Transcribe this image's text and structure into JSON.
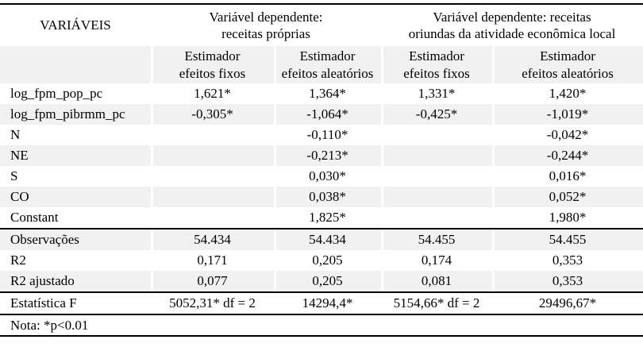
{
  "colors": {
    "background": "#ffffff",
    "row_shade": "#f1f1f1",
    "rule": "#000000",
    "text": "#000000"
  },
  "table": {
    "variables_header": "VARIÁVEIS",
    "group_headers": [
      {
        "line1": "Variável dependente:",
        "line2": "receitas próprias"
      },
      {
        "line1": "Variável dependente: receitas",
        "line2": "oriundas da atividade econômica local"
      }
    ],
    "estimator_headers": [
      {
        "line1": "Estimador",
        "line2": "efeitos fixos"
      },
      {
        "line1": "Estimador",
        "line2": "efeitos aleatórios"
      },
      {
        "line1": "Estimador",
        "line2": "efeitos fixos"
      },
      {
        "line1": "Estimador",
        "line2": "efeitos aleatórios"
      }
    ],
    "rows": [
      {
        "label": "log_fpm_pop_pc",
        "values": [
          "1,621*",
          "1,364*",
          "1,331*",
          "1,420*"
        ]
      },
      {
        "label": "log_fpm_pibrmm_pc",
        "values": [
          "-0,305*",
          "-1,064*",
          "-0,425*",
          "-1,019*"
        ]
      },
      {
        "label": "N",
        "values": [
          "",
          "-0,110*",
          "",
          "-0,042*"
        ]
      },
      {
        "label": "NE",
        "values": [
          "",
          "-0,213*",
          "",
          "-0,244*"
        ]
      },
      {
        "label": "S",
        "values": [
          "",
          "0,030*",
          "",
          "0,016*"
        ]
      },
      {
        "label": "CO",
        "values": [
          "",
          "0,038*",
          "",
          "0,052*"
        ]
      },
      {
        "label": "Constant",
        "values": [
          "",
          "1,825*",
          "",
          "1,980*"
        ]
      },
      {
        "label": "Observações",
        "values": [
          "54.434",
          "54.434",
          "54.455",
          "54.455"
        ]
      },
      {
        "label": "R2",
        "values": [
          "0,171",
          "0,205",
          "0,174",
          "0,353"
        ]
      },
      {
        "label": "R2 ajustado",
        "values": [
          "0,077",
          "0,205",
          "0,081",
          "0,353"
        ]
      },
      {
        "label": "Estatística F",
        "values": [
          "5052,31* df = 2",
          "14294,4*",
          "5154,66* df = 2",
          "29496,67*"
        ]
      }
    ],
    "note": "Nota: *p<0.01"
  }
}
